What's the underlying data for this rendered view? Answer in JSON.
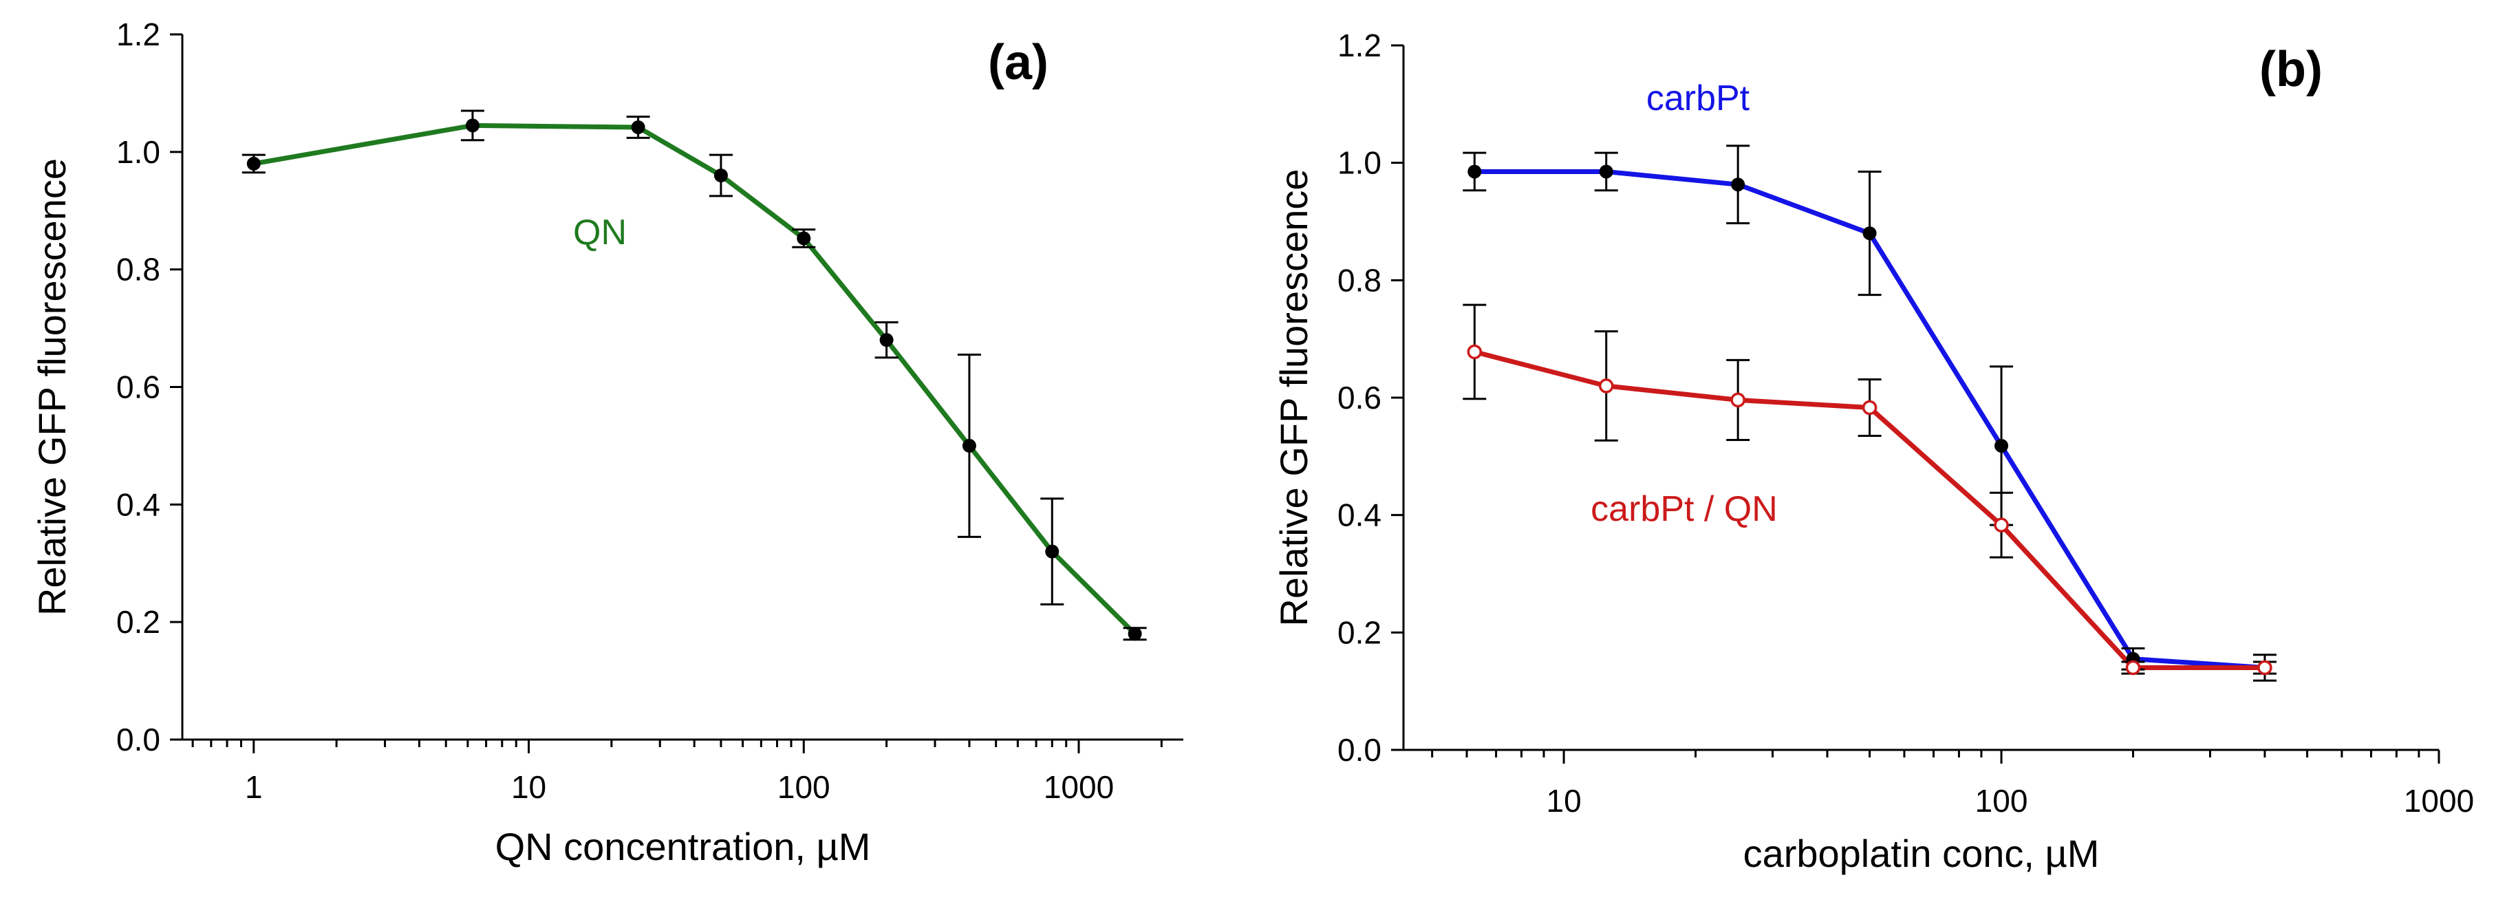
{
  "chart_data": [
    {
      "type": "line",
      "panel_label": "(a)",
      "xscale": "log",
      "xlabel": "QN concentration, µM",
      "ylabel": "Relative GFP fluorescence",
      "xlim": [
        0.55,
        2400
      ],
      "ylim": [
        0,
        1.2
      ],
      "xticks": [
        1,
        10,
        100,
        1000
      ],
      "xtick_labels": [
        "1",
        "10",
        "100",
        "1000"
      ],
      "yticks": [
        0,
        0.2,
        0.4,
        0.6,
        0.8,
        1.0,
        1.2
      ],
      "ytick_labels": [
        "0.0",
        "0.2",
        "0.4",
        "0.6",
        "0.8",
        "1.0",
        "1.2"
      ],
      "grid": false,
      "series": [
        {
          "name": "QN",
          "label_text": "QN",
          "color": "#1f7a1f",
          "marker": "filled",
          "marker_color": "#000000",
          "x": [
            1,
            6.25,
            25,
            50,
            100,
            200,
            400,
            800,
            1600
          ],
          "y": [
            0.98,
            1.045,
            1.042,
            0.96,
            0.853,
            0.68,
            0.5,
            0.32,
            0.18
          ],
          "err": [
            0.015,
            0.025,
            0.018,
            0.035,
            0.015,
            0.03,
            0.155,
            0.09,
            0.01
          ]
        }
      ]
    },
    {
      "type": "line",
      "panel_label": "(b)",
      "xscale": "log",
      "xlabel": "carboplatin conc, µM",
      "ylabel": "Relative GFP fluorescence",
      "xlim": [
        4.3,
        1000
      ],
      "ylim": [
        0,
        1.2
      ],
      "xticks": [
        10,
        100,
        1000
      ],
      "xtick_labels": [
        "10",
        "100",
        "1000"
      ],
      "yticks": [
        0,
        0.2,
        0.4,
        0.6,
        0.8,
        1.0,
        1.2
      ],
      "ytick_labels": [
        "0.0",
        "0.2",
        "0.4",
        "0.6",
        "0.8",
        "1.0",
        "1.2"
      ],
      "grid": false,
      "series": [
        {
          "name": "carbPt",
          "label_text": "carbPt",
          "color": "#1414e6",
          "marker": "filled",
          "marker_color": "#000000",
          "x": [
            6.25,
            12.5,
            25,
            50,
            100,
            200,
            400
          ],
          "y": [
            0.985,
            0.985,
            0.963,
            0.88,
            0.518,
            0.155,
            0.14
          ],
          "err": [
            0.032,
            0.032,
            0.066,
            0.105,
            0.135,
            0.018,
            0.022
          ]
        },
        {
          "name": "carbPt / QN",
          "label_text": "carbPt / QN",
          "color": "#cc1a1a",
          "marker": "open",
          "marker_color": "#cc1a1a",
          "x": [
            6.25,
            12.5,
            25,
            50,
            100,
            200,
            400
          ],
          "y": [
            0.678,
            0.62,
            0.596,
            0.583,
            0.383,
            0.14,
            0.14
          ],
          "err": [
            0.08,
            0.093,
            0.068,
            0.048,
            0.055,
            0.01,
            0.01
          ]
        }
      ]
    }
  ]
}
